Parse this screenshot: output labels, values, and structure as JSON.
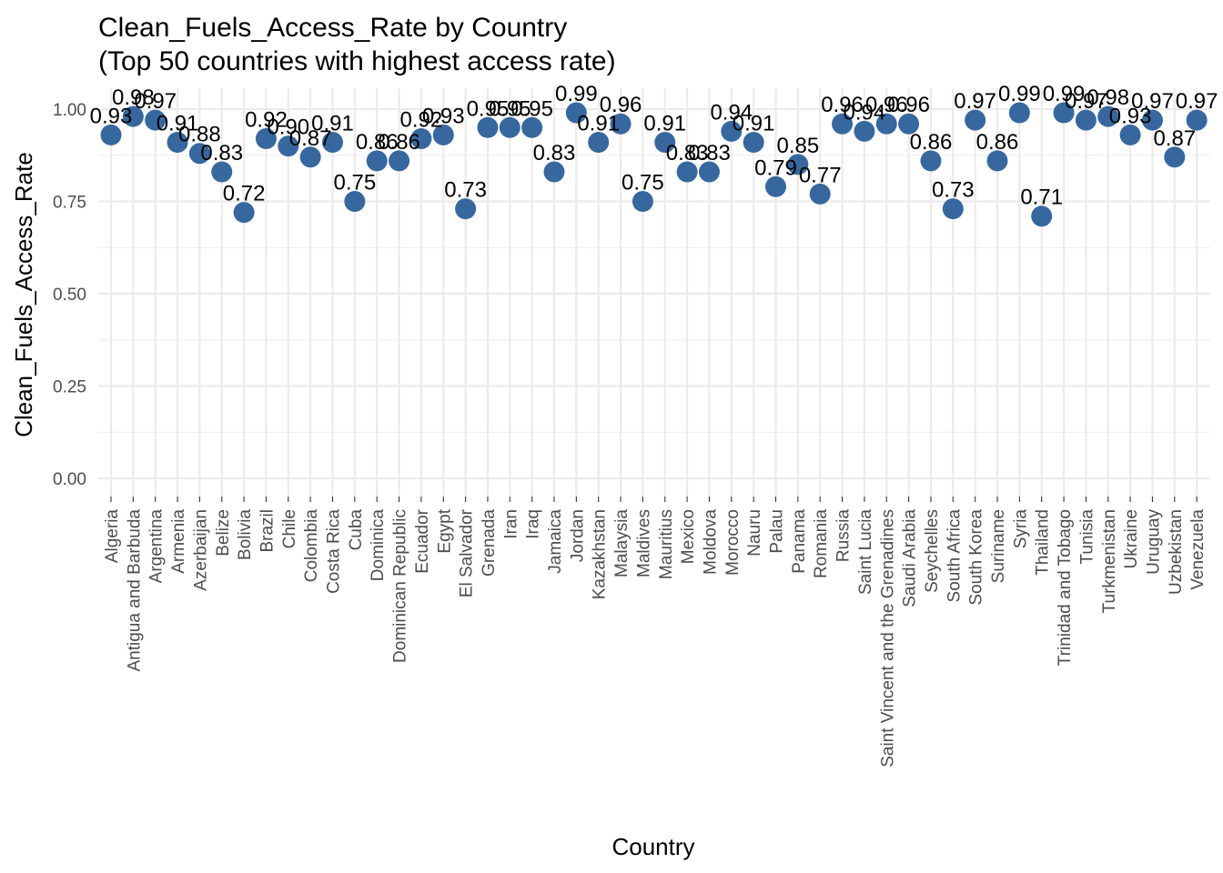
{
  "chart_data": {
    "type": "scatter",
    "title": "Clean_Fuels_Access_Rate by Country",
    "subtitle": "(Top 50 countries with highest access rate)",
    "xlabel": "Country",
    "ylabel": "Clean_Fuels_Access_Rate",
    "ylim": [
      0,
      1.0
    ],
    "y_ticks": [
      "0.00",
      "0.25",
      "0.50",
      "0.75",
      "1.00"
    ],
    "grid": true,
    "point_color": "#36689f",
    "categories": [
      "Algeria",
      "Antigua and Barbuda",
      "Argentina",
      "Armenia",
      "Azerbaijan",
      "Belize",
      "Bolivia",
      "Brazil",
      "Chile",
      "Colombia",
      "Costa Rica",
      "Cuba",
      "Dominica",
      "Dominican Republic",
      "Ecuador",
      "Egypt",
      "El Salvador",
      "Grenada",
      "Iran",
      "Iraq",
      "Jamaica",
      "Jordan",
      "Kazakhstan",
      "Malaysia",
      "Maldives",
      "Mauritius",
      "Mexico",
      "Moldova",
      "Morocco",
      "Nauru",
      "Palau",
      "Panama",
      "Romania",
      "Russia",
      "Saint Lucia",
      "Saint Vincent and the Grenadines",
      "Saudi Arabia",
      "Seychelles",
      "South Africa",
      "South Korea",
      "Suriname",
      "Syria",
      "Thailand",
      "Trinidad and Tobago",
      "Tunisia",
      "Turkmenistan",
      "Ukraine",
      "Uruguay",
      "Uzbekistan",
      "Venezuela"
    ],
    "values": [
      0.93,
      0.98,
      0.97,
      0.91,
      0.88,
      0.83,
      0.72,
      0.92,
      0.9,
      0.87,
      0.91,
      0.75,
      0.86,
      0.86,
      0.92,
      0.93,
      0.73,
      0.95,
      0.95,
      0.95,
      0.83,
      0.99,
      0.91,
      0.96,
      0.75,
      0.91,
      0.83,
      0.83,
      0.94,
      0.91,
      0.79,
      0.85,
      0.77,
      0.96,
      0.94,
      0.96,
      0.96,
      0.86,
      0.73,
      0.97,
      0.86,
      0.99,
      0.71,
      0.99,
      0.97,
      0.98,
      0.93,
      0.97,
      0.87,
      0.97
    ],
    "labels": [
      "0.93",
      "0.98",
      "0.97",
      "0.91",
      "0.88",
      "0.83",
      "0.72",
      "0.92",
      "0.90",
      "0.87",
      "0.91",
      "0.75",
      "0.86",
      "0.86",
      "0.92",
      "0.93",
      "0.73",
      "0.95",
      "0.95",
      "0.95",
      "0.83",
      "0.99",
      "0.91",
      "0.96",
      "0.75",
      "0.91",
      "0.83",
      "0.83",
      "0.94",
      "0.91",
      "0.79",
      "0.85",
      "0.77",
      "0.96",
      "0.94",
      "0.96",
      "0.96",
      "0.86",
      "0.73",
      "0.97",
      "0.86",
      "0.99",
      "0.71",
      "0.99",
      "0.97",
      "0.98",
      "0.93",
      "0.97",
      "0.87",
      "0.97"
    ]
  }
}
